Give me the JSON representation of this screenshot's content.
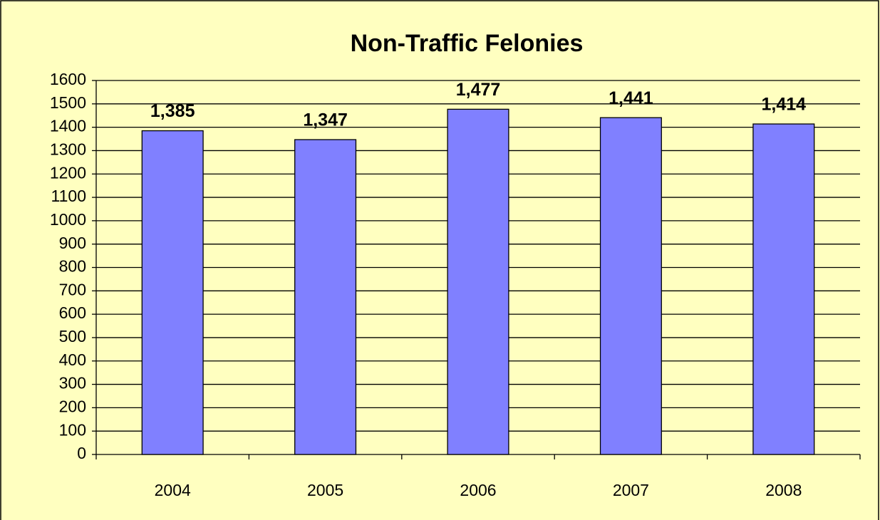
{
  "chart_data": {
    "type": "bar",
    "title": "Non-Traffic Felonies",
    "categories": [
      "2004",
      "2005",
      "2006",
      "2007",
      "2008"
    ],
    "values": [
      1385,
      1347,
      1477,
      1441,
      1414
    ],
    "value_labels": [
      "1,385",
      "1,347",
      "1,477",
      "1,441",
      "1,414"
    ],
    "color": "#8080ff",
    "ylim": [
      0,
      1600
    ],
    "yticks": [
      0,
      100,
      200,
      300,
      400,
      500,
      600,
      700,
      800,
      900,
      1000,
      1100,
      1200,
      1300,
      1400,
      1500,
      1600
    ],
    "grid": true
  }
}
